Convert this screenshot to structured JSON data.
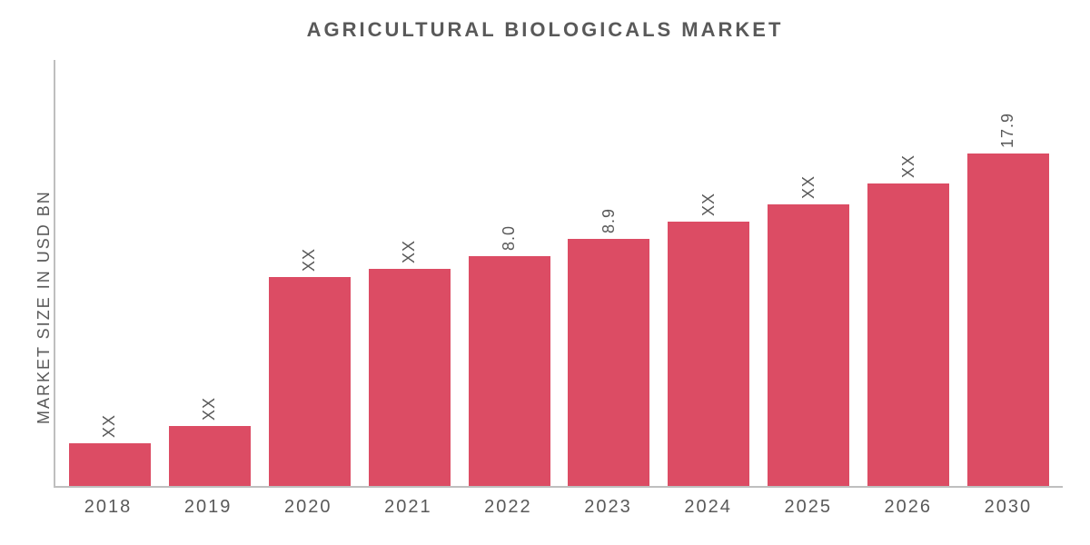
{
  "chart": {
    "type": "bar",
    "title": "AGRICULTURAL BIOLOGICALS MARKET",
    "title_fontsize": 22,
    "title_color": "#595959",
    "title_letter_spacing": 3,
    "y_axis_label": "MARKET SIZE IN USD BN",
    "y_axis_label_fontsize": 18,
    "y_axis_label_color": "#595959",
    "background_color": "#ffffff",
    "axis_line_color": "#bfbfbf",
    "axis_line_width": 2,
    "bar_color": "#dc4c64",
    "bar_width_ratio": 0.8,
    "x_label_fontsize": 20,
    "x_label_color": "#595959",
    "value_label_fontsize": 18,
    "value_label_color": "#595959",
    "value_label_orientation": "vertical",
    "ylim": [
      0,
      20
    ],
    "categories": [
      "2018",
      "2019",
      "2020",
      "2021",
      "2022",
      "2023",
      "2024",
      "2025",
      "2026",
      "2030"
    ],
    "values_display": [
      "XX",
      "XX",
      "XX",
      "XX",
      "8.0",
      "8.9",
      "XX",
      "XX",
      "XX",
      "17.9"
    ],
    "bar_heights_pct": [
      10,
      14,
      49,
      51,
      54,
      58,
      62,
      66,
      71,
      78
    ]
  }
}
